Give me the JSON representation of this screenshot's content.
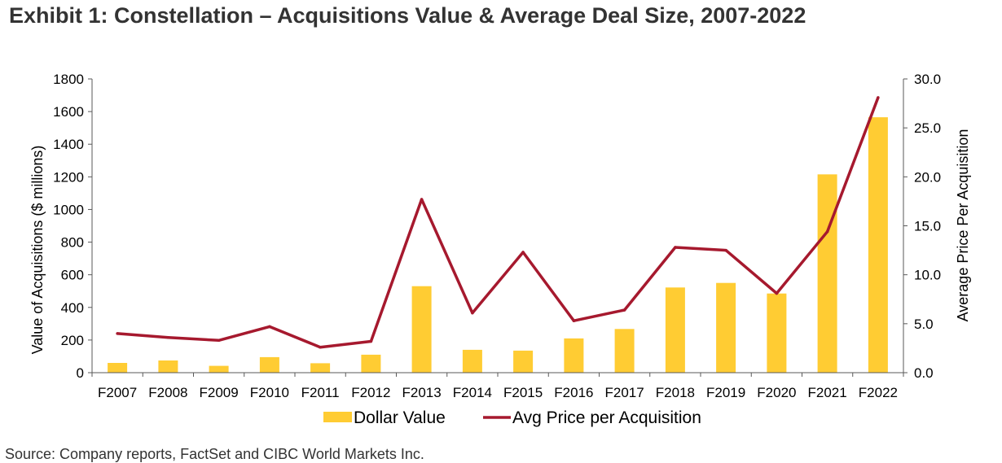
{
  "title": "Exhibit 1: Constellation – Acquisitions Value & Average Deal Size, 2007-2022",
  "source": "Source: Company reports, FactSet and CIBC World Markets Inc.",
  "colors": {
    "bar": "#FFCC33",
    "line": "#A6192E",
    "axis": "#595959",
    "text": "#000000"
  },
  "chart_data": {
    "type": "bar+line",
    "title": "Exhibit 1: Constellation – Acquisitions Value & Average Deal Size, 2007-2022",
    "categories": [
      "F2007",
      "F2008",
      "F2009",
      "F2010",
      "F2011",
      "F2012",
      "F2013",
      "F2014",
      "F2015",
      "F2016",
      "F2017",
      "F2018",
      "F2019",
      "F2020",
      "F2021",
      "F2022"
    ],
    "series": [
      {
        "name": "Dollar Value",
        "kind": "bar",
        "axis": "left",
        "values": [
          60,
          75,
          42,
          95,
          58,
          110,
          530,
          140,
          135,
          210,
          268,
          522,
          550,
          485,
          1215,
          1565
        ]
      },
      {
        "name": "Avg Price per Acquisition",
        "kind": "line",
        "axis": "right",
        "values": [
          4.0,
          3.6,
          3.3,
          4.7,
          2.6,
          3.2,
          17.7,
          6.1,
          12.3,
          5.3,
          6.4,
          12.8,
          12.5,
          8.1,
          14.4,
          28.1
        ]
      }
    ],
    "y_left": {
      "label": "Value of Acquisitions ($ millions)",
      "min": 0,
      "max": 1800,
      "ticks": [
        "0",
        "200",
        "400",
        "600",
        "800",
        "1000",
        "1200",
        "1400",
        "1600",
        "1800"
      ]
    },
    "y_right": {
      "label": "Average Price Per Acquisition",
      "min": 0,
      "max": 30,
      "ticks": [
        "0.0",
        "5.0",
        "10.0",
        "15.0",
        "20.0",
        "25.0",
        "30.0"
      ]
    },
    "legend": {
      "position": "bottom-center",
      "items": [
        "Dollar Value",
        "Avg Price per Acquisition"
      ]
    },
    "grid": false
  }
}
